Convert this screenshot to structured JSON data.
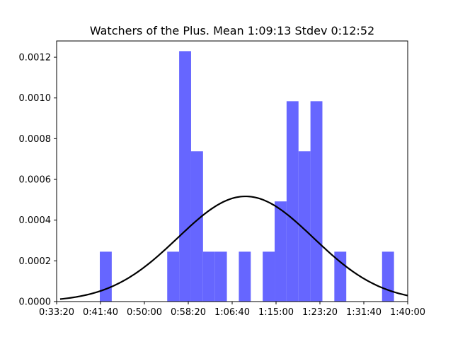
{
  "chart_data": {
    "type": "bar",
    "title": "Watchers of the Plus. Mean 1:09:13 Stdev 0:12:52",
    "xlabel": "",
    "ylabel": "",
    "x_unit": "seconds",
    "xlim": [
      2000,
      6000
    ],
    "ylim": [
      0,
      0.00128
    ],
    "x_ticks": [
      {
        "value": 2000,
        "label": "0:33:20"
      },
      {
        "value": 2500,
        "label": "0:41:40"
      },
      {
        "value": 3000,
        "label": "0:50:00"
      },
      {
        "value": 3500,
        "label": "0:58:20"
      },
      {
        "value": 4000,
        "label": "1:06:40"
      },
      {
        "value": 4500,
        "label": "1:15:00"
      },
      {
        "value": 5000,
        "label": "1:23:20"
      },
      {
        "value": 5500,
        "label": "1:31:40"
      },
      {
        "value": 6000,
        "label": "1:40:00"
      }
    ],
    "y_ticks": [
      {
        "value": 0,
        "label": "0.0000"
      },
      {
        "value": 0.0002,
        "label": "0.0002"
      },
      {
        "value": 0.0004,
        "label": "0.0004"
      },
      {
        "value": 0.0006,
        "label": "0.0006"
      },
      {
        "value": 0.0008,
        "label": "0.0008"
      },
      {
        "value": 0.001,
        "label": "0.0010"
      },
      {
        "value": 0.0012,
        "label": "0.0012"
      }
    ],
    "bin_width": 136,
    "bins": [
      {
        "x0": 2492,
        "value": 0.000245
      },
      {
        "x0": 3260,
        "value": 0.000245
      },
      {
        "x0": 3396,
        "value": 0.00123
      },
      {
        "x0": 3532,
        "value": 0.000738
      },
      {
        "x0": 3668,
        "value": 0.000245
      },
      {
        "x0": 3804,
        "value": 0.000245
      },
      {
        "x0": 4076,
        "value": 0.000245
      },
      {
        "x0": 4348,
        "value": 0.000245
      },
      {
        "x0": 4484,
        "value": 0.000492
      },
      {
        "x0": 4620,
        "value": 0.000984
      },
      {
        "x0": 4756,
        "value": 0.000738
      },
      {
        "x0": 4892,
        "value": 0.000984
      },
      {
        "x0": 5164,
        "value": 0.000245
      },
      {
        "x0": 5708,
        "value": 0.000245
      }
    ],
    "bar_color": "#6666ff",
    "curve": {
      "type": "normal-pdf",
      "mean": 4153,
      "stdev": 772,
      "x_from": 2040,
      "x_to": 6000,
      "color": "#000000"
    },
    "grid": false,
    "legend": "none"
  }
}
